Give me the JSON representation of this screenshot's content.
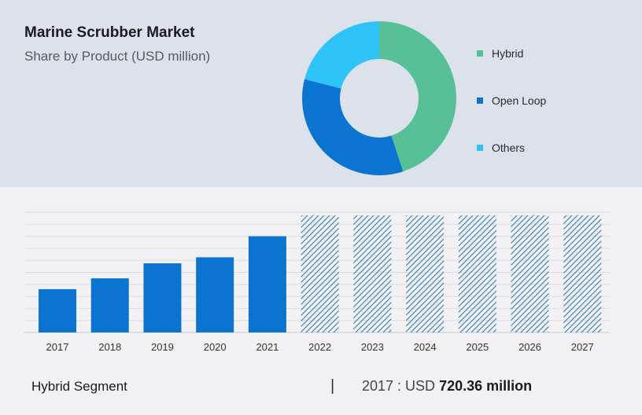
{
  "header": {
    "title": "Marine Scrubber Market",
    "subtitle": "Share by Product (USD million)"
  },
  "colors": {
    "hybrid": "#57c096",
    "open_loop": "#0a74d0",
    "others": "#2ec4f8",
    "bar": "#0a74d0",
    "forecast_hatch": "#2d7ab6"
  },
  "chart_data": [
    {
      "type": "pie",
      "variant": "donut",
      "title": "Share by Product (USD million)",
      "legend_position": "right",
      "categories": [
        "Hybrid",
        "Open Loop",
        "Others"
      ],
      "values": [
        45,
        34,
        21
      ]
    },
    {
      "type": "bar",
      "categories": [
        "2017",
        "2018",
        "2019",
        "2020",
        "2021",
        "2022",
        "2023",
        "2024",
        "2025",
        "2026",
        "2027"
      ],
      "values": [
        720.36,
        900,
        1150,
        1250,
        1600,
        null,
        null,
        null,
        null,
        null,
        null
      ],
      "forecast_categories": [
        "2022",
        "2023",
        "2024",
        "2025",
        "2026",
        "2027"
      ],
      "ylim": [
        0,
        2000
      ],
      "grid": true,
      "title": "",
      "xlabel": "",
      "ylabel": ""
    }
  ],
  "footer": {
    "segment": "Hybrid Segment",
    "separator": "|",
    "year_label": "2017 : USD",
    "value": "720.36 million"
  }
}
